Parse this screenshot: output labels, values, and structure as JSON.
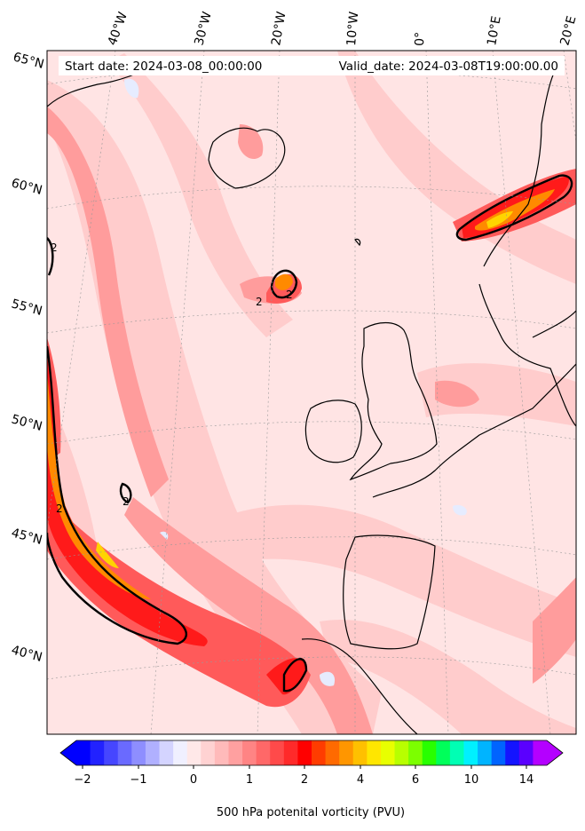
{
  "header": {
    "start_date": "Start date: 2024-03-08_00:00:00",
    "valid_date": "Valid_date: 2024-03-08T19:00:00.00"
  },
  "longitude_labels": [
    "40°W",
    "30°W",
    "20°W",
    "10°W",
    "0°",
    "10°E",
    "20°E"
  ],
  "latitude_labels": [
    "65°N",
    "60°N",
    "55°N",
    "50°N",
    "45°N",
    "40°N"
  ],
  "contour_labels": [
    "2",
    "2",
    "2",
    "2",
    "2"
  ],
  "colorbar": {
    "tick_labels": [
      "−2",
      "−1",
      "0",
      "1",
      "2",
      "4",
      "6",
      "10",
      "14"
    ],
    "title": "500 hPa potenital vorticity (PVU)",
    "colors": [
      "#0000ff",
      "#2222ff",
      "#4646ff",
      "#6a6aff",
      "#8e8eff",
      "#b0b0ff",
      "#d4d4ff",
      "#f0f0ff",
      "#ffe8e8",
      "#ffd2d2",
      "#ffbaba",
      "#ffa0a0",
      "#ff8484",
      "#ff6868",
      "#ff4a4a",
      "#ff2a2a",
      "#ff0000",
      "#ff3c00",
      "#ff6a00",
      "#ff9600",
      "#ffc000",
      "#ffe600",
      "#e8ff00",
      "#b8ff00",
      "#7cff00",
      "#28ff00",
      "#00ff5a",
      "#00ffb4",
      "#00f0ff",
      "#00b4ff",
      "#0064ff",
      "#1414ff",
      "#5a00ff",
      "#b400ff"
    ],
    "under_color": "#0000ff",
    "over_color": "#b400ff"
  },
  "map_colors": {
    "background": "#ffe4e4",
    "light": "#ffcccc",
    "medium": "#ff9c9c",
    "strong": "#ff5a5a",
    "red": "#ff1a1a",
    "orange": "#ff8a00",
    "yellow": "#ffd400",
    "blue_light": "#e6ecff",
    "coast": "#000000"
  }
}
